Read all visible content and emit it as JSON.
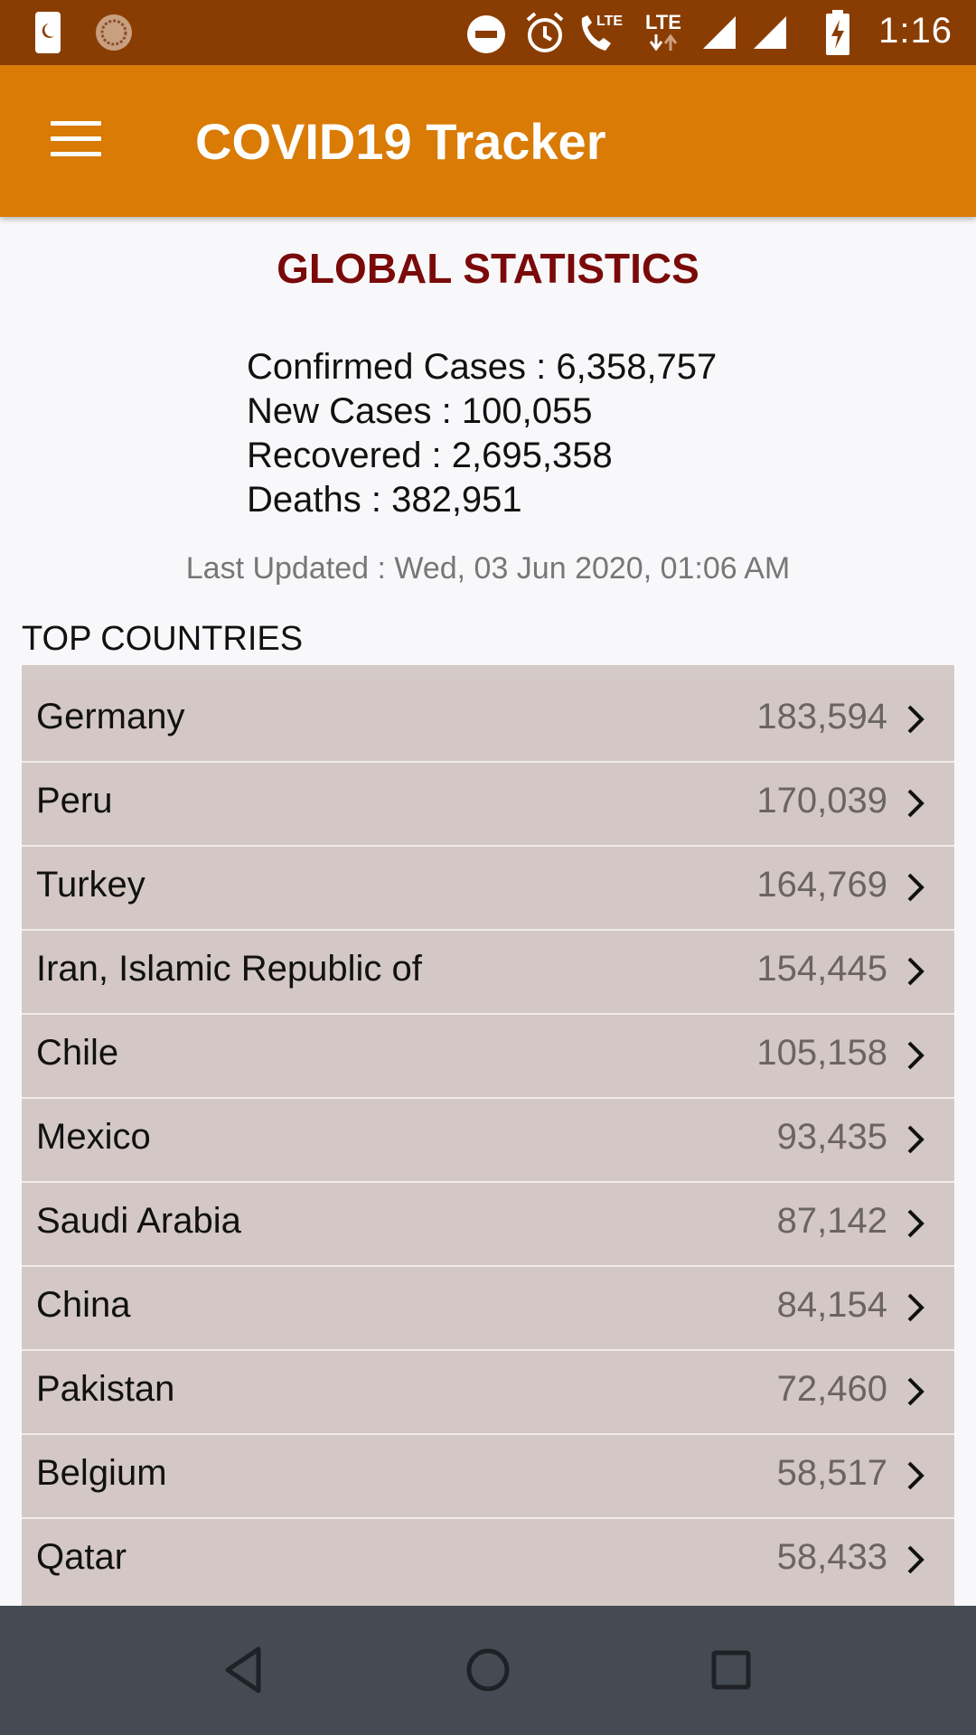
{
  "status_bar": {
    "time": "1:16",
    "icons": [
      "sim-card-icon",
      "app-notification-icon",
      "do-not-disturb-icon",
      "alarm-icon",
      "lte-call-icon",
      "lte-data-icon",
      "signal-icon",
      "signal-icon",
      "battery-charging-icon"
    ]
  },
  "app_bar": {
    "title": "COVID19 Tracker",
    "menu_icon": "hamburger-menu-icon",
    "color": "#d97b05"
  },
  "global": {
    "title": "GLOBAL STATISTICS",
    "confirmed": "Confirmed Cases : 6,358,757",
    "new_cases": "New Cases : 100,055",
    "recovered": "Recovered : 2,695,358",
    "deaths": "Deaths : 382,951",
    "last_updated": "Last Updated : Wed, 03 Jun 2020, 01:06 AM"
  },
  "top_countries": {
    "heading": "TOP COUNTRIES",
    "rows": [
      {
        "name": "Germany",
        "count": "183,594"
      },
      {
        "name": "Peru",
        "count": "170,039"
      },
      {
        "name": "Turkey",
        "count": "164,769"
      },
      {
        "name": "Iran, Islamic Republic of",
        "count": "154,445"
      },
      {
        "name": "Chile",
        "count": "105,158"
      },
      {
        "name": "Mexico",
        "count": "93,435"
      },
      {
        "name": "Saudi Arabia",
        "count": "87,142"
      },
      {
        "name": "China",
        "count": "84,154"
      },
      {
        "name": "Pakistan",
        "count": "72,460"
      },
      {
        "name": "Belgium",
        "count": "58,517"
      },
      {
        "name": "Qatar",
        "count": "58,433"
      }
    ]
  },
  "nav_bar": {
    "buttons": [
      "back-icon",
      "home-icon",
      "recents-icon"
    ]
  }
}
